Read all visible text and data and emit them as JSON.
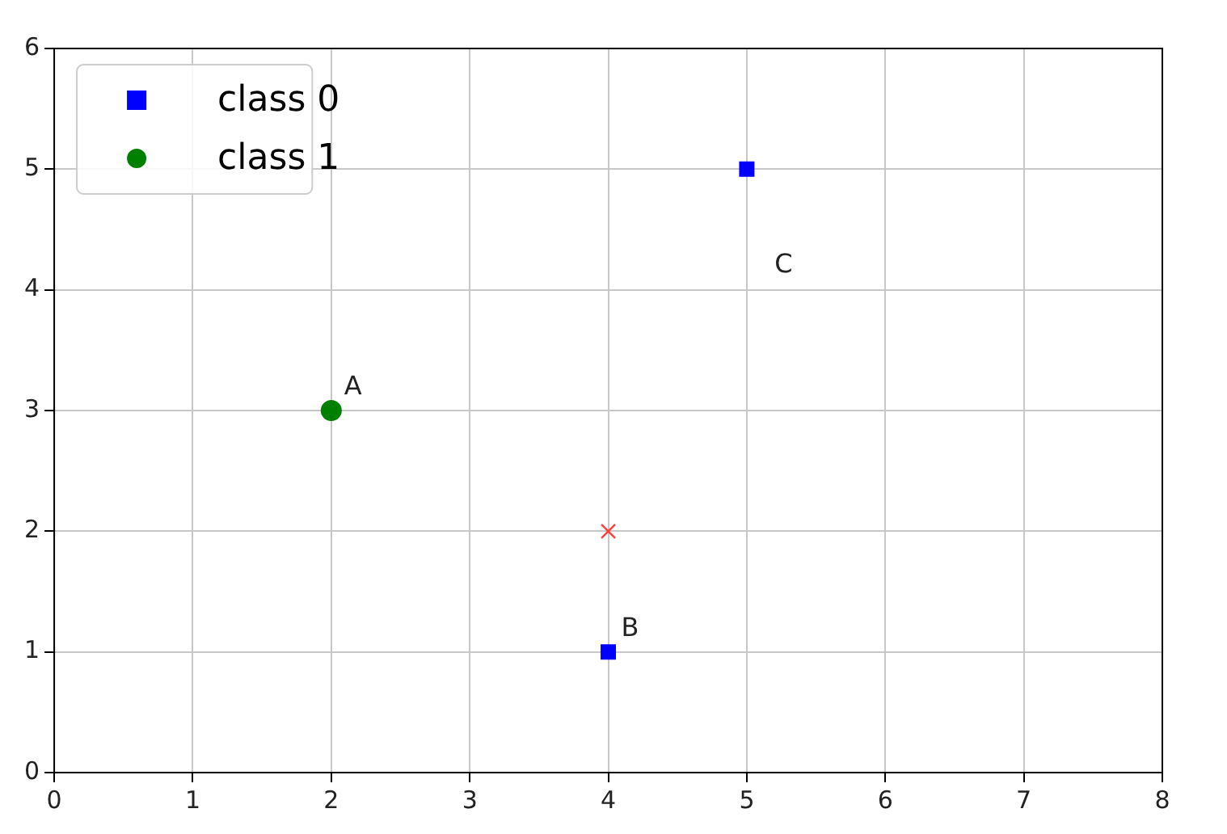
{
  "chart_data": {
    "type": "scatter",
    "xlim": [
      0,
      8
    ],
    "ylim": [
      0,
      6
    ],
    "xticks": [
      0,
      1,
      2,
      3,
      4,
      5,
      6,
      7,
      8
    ],
    "yticks": [
      0,
      1,
      2,
      3,
      4,
      5,
      6
    ],
    "grid": true,
    "legend": "top left",
    "series": [
      {
        "name": "class 0",
        "color": "#0000ff",
        "marker": "square",
        "x": [
          5,
          4
        ],
        "values": [
          5,
          1
        ]
      },
      {
        "name": "class 1",
        "color": "#008000",
        "marker": "circle",
        "x": [
          2
        ],
        "values": [
          3
        ]
      },
      {
        "color": "#ff4040",
        "marker": "cross",
        "x": [
          4
        ],
        "values": [
          2
        ]
      }
    ],
    "annotations": [
      {
        "text": "A",
        "x": 2,
        "y": 3
      },
      {
        "text": "B",
        "x": 4,
        "y": 1
      },
      "C"
    ]
  }
}
